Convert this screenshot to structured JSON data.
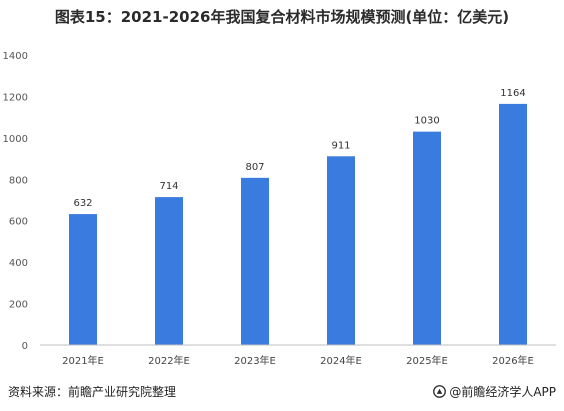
{
  "title": "图表15：2021-2026年我国复合材料市场规模预测(单位：亿美元)",
  "source": "资料来源：前瞻产业研究院整理",
  "brand": "@前瞻经济学人APP",
  "colors": {
    "bar": "#3a7be0",
    "axis": "#bfbfbf",
    "grid": "#e6e6e6"
  },
  "chart_data": {
    "type": "bar",
    "categories": [
      "2021年E",
      "2022年E",
      "2023年E",
      "2024年E",
      "2025年E",
      "2026年E"
    ],
    "values": [
      632,
      714,
      807,
      911,
      1030,
      1164
    ],
    "ylim": [
      0,
      1400
    ],
    "yticks": [
      0,
      200,
      400,
      600,
      800,
      1000,
      1200,
      1400
    ],
    "xlabel": "",
    "ylabel": "",
    "grid": false,
    "data_labels": true
  }
}
